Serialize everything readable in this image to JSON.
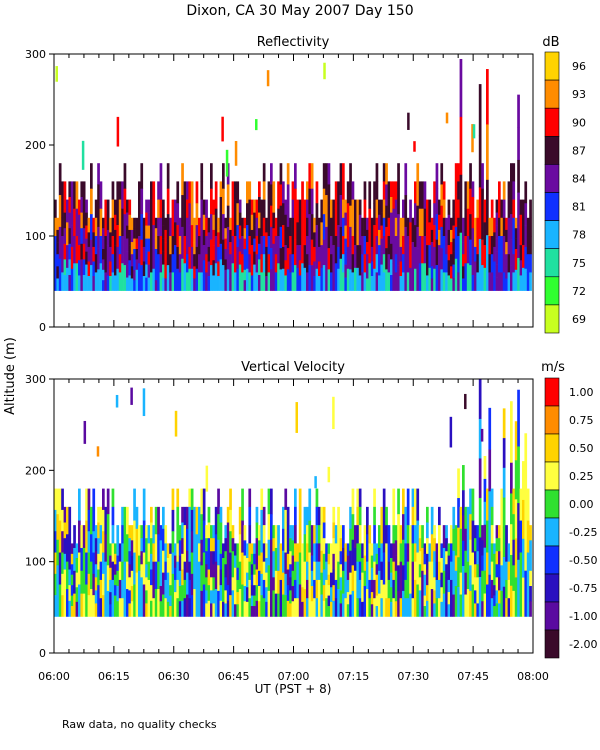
{
  "chart_data": {
    "type": "heatmap",
    "title": "Dixon, CA 30 May 2007  Day 150",
    "ylabel": "Altitude (m)",
    "xlabel": "UT  (PST + 8)",
    "footnote": "Raw data, no quality checks",
    "x_ticks": [
      "06:00",
      "06:15",
      "06:30",
      "06:45",
      "07:00",
      "07:15",
      "07:30",
      "07:45",
      "08:00"
    ],
    "x_range_minutes": [
      0,
      120
    ],
    "y_range": [
      0,
      300
    ],
    "y_ticks": [
      0,
      100,
      200,
      300
    ],
    "panels": [
      {
        "name": "reflectivity",
        "title": "Reflectivity",
        "unit": "dB",
        "colorbar_labels": [
          "96",
          "93",
          "90",
          "87",
          "84",
          "81",
          "78",
          "75",
          "72",
          "69"
        ],
        "colors": [
          "#ffd300",
          "#ff8c00",
          "#ff0000",
          "#3a0a2a",
          "#6a0aa0",
          "#1030ff",
          "#19b4ff",
          "#20e0a0",
          "#30ff30",
          "#c8ff20"
        ],
        "data_band_m": [
          40,
          180
        ]
      },
      {
        "name": "vertical-velocity",
        "title": "Vertical Velocity",
        "unit": "m/s",
        "colorbar_labels": [
          "1.00",
          "0.75",
          "0.50",
          "0.25",
          "0.00",
          "-0.25",
          "-0.50",
          "-0.75",
          "-1.00",
          "-2.00"
        ],
        "colors": [
          "#ff0000",
          "#ff8c00",
          "#ffd300",
          "#ffff40",
          "#30e030",
          "#19b4ff",
          "#1030ff",
          "#2a10c0",
          "#5a0aa0",
          "#3a0a2a"
        ],
        "data_band_m": [
          40,
          180
        ]
      }
    ]
  }
}
